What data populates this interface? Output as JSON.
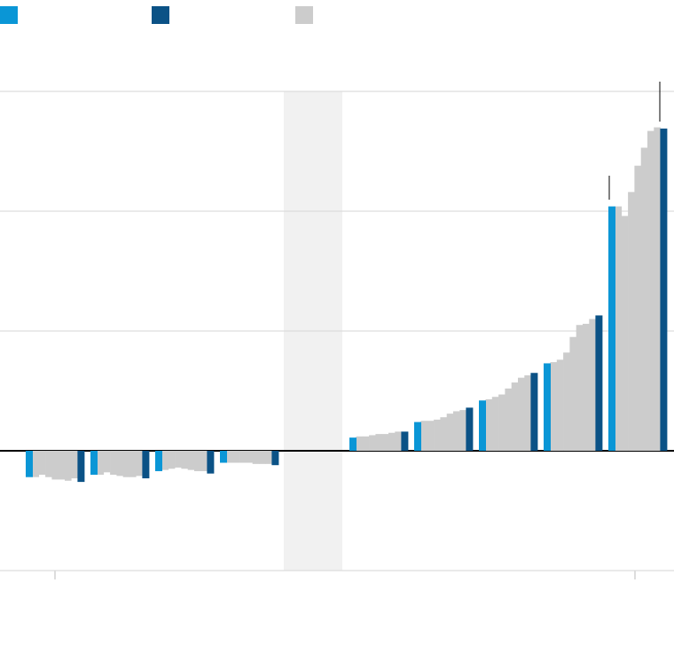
{
  "chart_data": {
    "type": "bar",
    "grid": true,
    "categories": [
      null,
      null,
      null,
      null,
      null,
      null,
      null,
      null,
      null,
      null,
      null,
      null,
      null,
      null,
      null,
      null,
      null,
      null,
      null,
      null,
      null,
      null,
      null,
      null,
      null,
      null,
      null,
      null,
      null,
      null,
      null,
      null,
      null,
      null,
      null,
      null,
      null,
      null,
      null,
      null,
      null,
      null,
      null,
      null,
      null,
      null,
      null,
      null,
      null,
      null,
      null,
      null,
      null,
      null,
      null,
      null,
      null,
      null,
      null,
      null,
      null,
      null,
      null,
      null,
      null,
      null,
      null,
      null,
      null,
      null,
      null,
      null,
      null,
      null,
      null,
      null,
      null,
      null,
      null,
      null,
      null,
      null,
      null,
      null,
      null,
      null,
      null,
      null,
      null,
      null,
      null,
      null,
      null,
      null,
      null,
      null,
      null,
      null,
      null,
      null
    ],
    "ylim": [
      -1,
      3
    ],
    "yticks": [
      -1,
      0,
      1,
      2,
      3
    ],
    "series": [
      {
        "color": "#0a96d6",
        "values": [
          -0.22,
          null,
          null,
          null,
          null,
          null,
          null,
          null,
          null,
          null,
          -0.2,
          null,
          null,
          null,
          null,
          null,
          null,
          null,
          null,
          null,
          -0.17,
          null,
          null,
          null,
          null,
          null,
          null,
          null,
          null,
          null,
          -0.1,
          null,
          null,
          null,
          null,
          null,
          null,
          null,
          null,
          null,
          null,
          null,
          null,
          null,
          null,
          null,
          null,
          null,
          null,
          null,
          0.11,
          null,
          null,
          null,
          null,
          null,
          null,
          null,
          null,
          null,
          0.24,
          null,
          null,
          null,
          null,
          null,
          null,
          null,
          null,
          null,
          0.42,
          null,
          null,
          null,
          null,
          null,
          null,
          null,
          null,
          null,
          0.73,
          null,
          null,
          null,
          null,
          null,
          null,
          null,
          null,
          null,
          2.04,
          null,
          null,
          null,
          null,
          null,
          null,
          null,
          null,
          null
        ]
      },
      {
        "color": "#0b5286",
        "values": [
          null,
          null,
          null,
          null,
          null,
          null,
          null,
          null,
          -0.26,
          null,
          null,
          null,
          null,
          null,
          null,
          null,
          null,
          null,
          -0.23,
          null,
          null,
          null,
          null,
          null,
          null,
          null,
          null,
          null,
          -0.19,
          null,
          null,
          null,
          null,
          null,
          null,
          null,
          null,
          null,
          -0.12,
          null,
          null,
          null,
          null,
          null,
          null,
          null,
          null,
          null,
          null,
          null,
          null,
          null,
          null,
          null,
          null,
          null,
          null,
          null,
          0.16,
          null,
          null,
          null,
          null,
          null,
          null,
          null,
          null,
          null,
          0.36,
          null,
          null,
          null,
          null,
          null,
          null,
          null,
          null,
          null,
          0.65,
          null,
          null,
          null,
          null,
          null,
          null,
          null,
          null,
          null,
          1.13,
          null,
          null,
          null,
          null,
          null,
          null,
          null,
          null,
          null,
          2.69,
          null
        ]
      },
      {
        "color": "#cccccc",
        "values": [
          null,
          -0.22,
          -0.2,
          -0.22,
          -0.24,
          -0.24,
          -0.25,
          -0.23,
          null,
          null,
          null,
          -0.2,
          -0.18,
          -0.2,
          -0.21,
          -0.22,
          -0.22,
          -0.21,
          null,
          null,
          null,
          -0.16,
          -0.15,
          -0.14,
          -0.15,
          -0.16,
          -0.17,
          -0.17,
          null,
          null,
          null,
          -0.1,
          -0.1,
          -0.1,
          -0.1,
          -0.11,
          -0.11,
          -0.11,
          null,
          null,
          null,
          null,
          null,
          null,
          null,
          null,
          null,
          null,
          null,
          null,
          null,
          0.12,
          0.12,
          0.13,
          0.14,
          0.14,
          0.15,
          0.16,
          null,
          null,
          null,
          0.25,
          0.25,
          0.26,
          0.28,
          0.31,
          0.33,
          0.34,
          null,
          null,
          null,
          0.43,
          0.45,
          0.47,
          0.52,
          0.57,
          0.61,
          0.63,
          null,
          null,
          null,
          0.74,
          0.76,
          0.82,
          0.95,
          1.05,
          1.06,
          1.1,
          null,
          null,
          null,
          2.04,
          1.96,
          2.16,
          2.38,
          2.53,
          2.67,
          2.7,
          null,
          null
        ]
      }
    ]
  }
}
